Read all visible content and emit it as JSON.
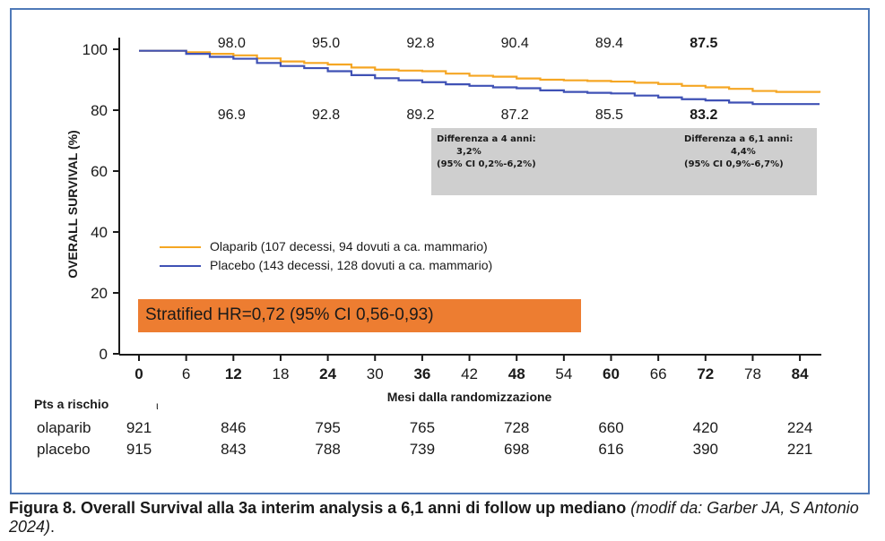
{
  "chart_data": {
    "type": "line",
    "subtype": "kaplan-meier",
    "xlabel": "Mesi dalla randomizzazione",
    "ylabel": "OVERALL SURVIVAL (%)",
    "xlim": [
      0,
      84
    ],
    "ylim": [
      0,
      100
    ],
    "x_ticks": [
      0,
      6,
      12,
      18,
      24,
      30,
      36,
      42,
      48,
      54,
      60,
      66,
      72,
      78,
      84
    ],
    "x_ticks_bold": [
      0,
      12,
      24,
      36,
      48,
      60,
      72,
      84
    ],
    "y_ticks": [
      0,
      20,
      40,
      60,
      80,
      100
    ],
    "series": [
      {
        "name": "Olaparib (107 decessi, 94 dovuti a ca. mammario)",
        "color": "#f5a623",
        "x": [
          0,
          3,
          6,
          9,
          12,
          15,
          18,
          21,
          24,
          27,
          30,
          33,
          36,
          39,
          42,
          45,
          48,
          51,
          54,
          57,
          60,
          63,
          66,
          69,
          72,
          75,
          78,
          81,
          84,
          87
        ],
        "y": [
          99.5,
          99.5,
          99.0,
          98.5,
          98.0,
          97.0,
          96.0,
          95.5,
          95.0,
          94.0,
          93.3,
          93.0,
          92.8,
          92.0,
          91.3,
          91.0,
          90.4,
          90.0,
          89.8,
          89.6,
          89.4,
          89.0,
          88.6,
          88.0,
          87.5,
          87.0,
          86.3,
          86.0,
          86.0,
          85.7
        ]
      },
      {
        "name": "Placebo (143 decessi, 128 dovuti a ca. mammario)",
        "color": "#3f51b5",
        "x": [
          0,
          3,
          6,
          9,
          12,
          15,
          18,
          21,
          24,
          27,
          30,
          33,
          36,
          39,
          42,
          45,
          48,
          51,
          54,
          57,
          60,
          63,
          66,
          69,
          72,
          75,
          78,
          81,
          84,
          87
        ],
        "y": [
          99.5,
          99.5,
          98.5,
          97.5,
          96.9,
          95.5,
          94.5,
          93.8,
          92.8,
          91.5,
          90.5,
          89.8,
          89.2,
          88.5,
          88.0,
          87.5,
          87.2,
          86.5,
          86.0,
          85.7,
          85.5,
          84.8,
          84.2,
          83.6,
          83.2,
          82.5,
          82.0,
          82.0,
          82.0,
          82.0
        ]
      }
    ],
    "annotations_top": [
      {
        "x": 12,
        "text": "98.0",
        "bold": false
      },
      {
        "x": 24,
        "text": "95.0",
        "bold": false
      },
      {
        "x": 36,
        "text": "92.8",
        "bold": false
      },
      {
        "x": 48,
        "text": "90.4",
        "bold": false
      },
      {
        "x": 60,
        "text": "89.4",
        "bold": false
      },
      {
        "x": 72,
        "text": "87.5",
        "bold": true
      }
    ],
    "annotations_bottom": [
      {
        "x": 12,
        "text": "96.9",
        "bold": false
      },
      {
        "x": 24,
        "text": "92.8",
        "bold": false
      },
      {
        "x": 36,
        "text": "89.2",
        "bold": false
      },
      {
        "x": 48,
        "text": "87.2",
        "bold": false
      },
      {
        "x": 60,
        "text": "85.5",
        "bold": false
      },
      {
        "x": 72,
        "text": "83.2",
        "bold": true
      }
    ],
    "diff_4y": [
      "Differenza  a 4 anni:",
      "3,2%",
      "(95% CI 0,2%-6,2%)"
    ],
    "diff_6y": [
      "Differenza a 6,1 anni:",
      "4,4%",
      "(95% CI 0,9%-6,7%)"
    ],
    "hazard_ratio": "Stratified HR=0,72 (95% CI 0,56-0,93)",
    "hr_box_color": "#ed7d31",
    "diff_box_color": "#cfcfcf"
  },
  "risk_table": {
    "title": "Pts a rischio",
    "mark": "ι",
    "rows": [
      {
        "name": "olaparib",
        "values": [
          "921",
          "846",
          "795",
          "765",
          "728",
          "660",
          "420",
          "224"
        ]
      },
      {
        "name": "placebo",
        "values": [
          "915",
          "843",
          "788",
          "739",
          "698",
          "616",
          "390",
          "221"
        ]
      }
    ]
  },
  "caption": {
    "bold": "Figura 8. Overall Survival alla 3a interim analysis a 6,1 anni di follow up mediano",
    "italic": "(modif da: Garber JA, S Antonio 2024)",
    "end": "."
  },
  "frame_color": "#4f79b8"
}
